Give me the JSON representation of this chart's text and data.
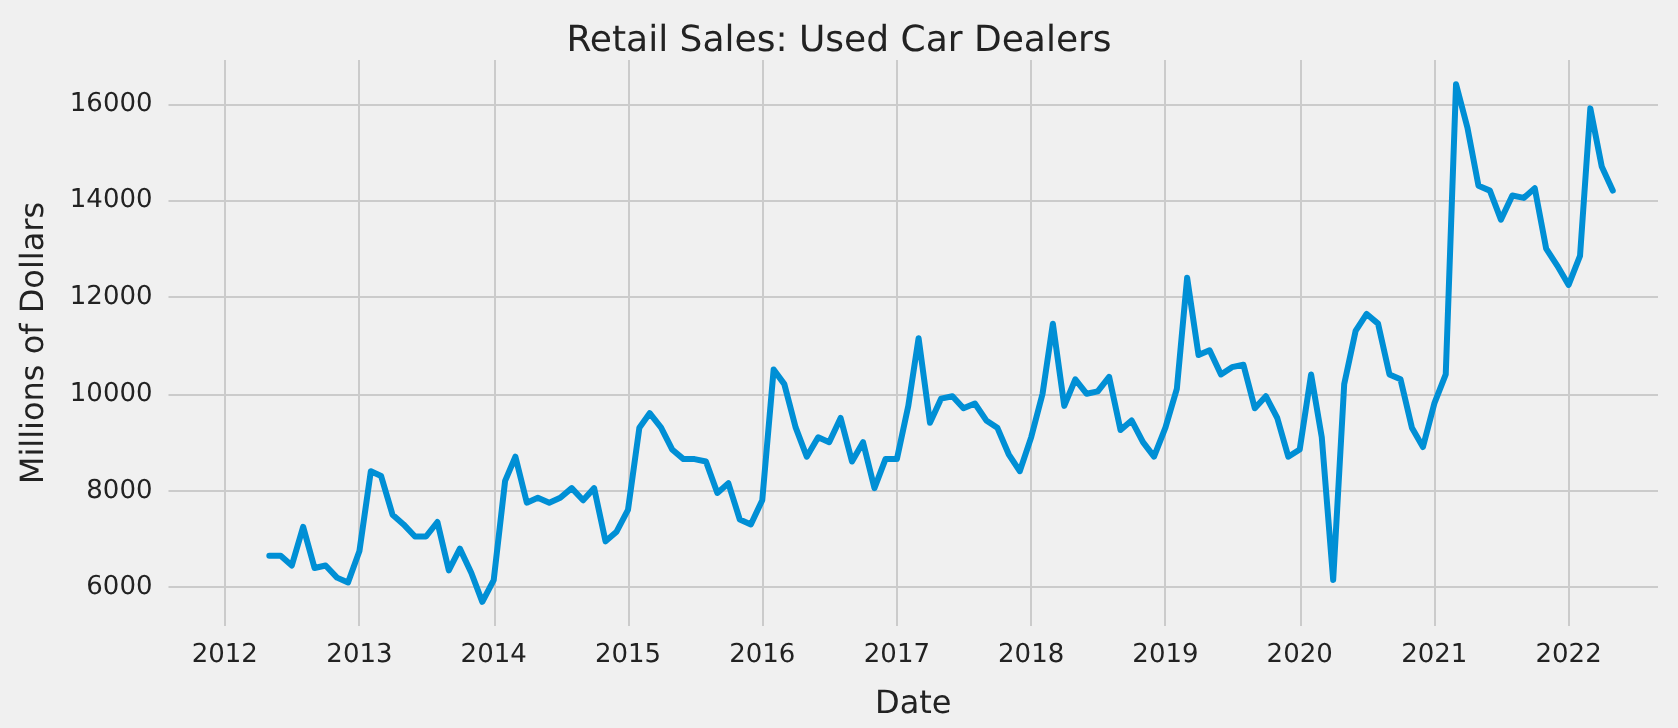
{
  "chart_data": {
    "type": "line",
    "title": "Retail Sales: Used Car Dealers",
    "xlabel": "Date",
    "ylabel": "Millions of Dollars",
    "x": [
      "2012-05",
      "2012-06",
      "2012-07",
      "2012-08",
      "2012-09",
      "2012-10",
      "2012-11",
      "2012-12",
      "2013-01",
      "2013-02",
      "2013-03",
      "2013-04",
      "2013-05",
      "2013-06",
      "2013-07",
      "2013-08",
      "2013-09",
      "2013-10",
      "2013-11",
      "2013-12",
      "2014-01",
      "2014-02",
      "2014-03",
      "2014-04",
      "2014-05",
      "2014-06",
      "2014-07",
      "2014-08",
      "2014-09",
      "2014-10",
      "2014-11",
      "2014-12",
      "2015-01",
      "2015-02",
      "2015-03",
      "2015-04",
      "2015-05",
      "2015-06",
      "2015-07",
      "2015-08",
      "2015-09",
      "2015-10",
      "2015-11",
      "2015-12",
      "2016-01",
      "2016-02",
      "2016-03",
      "2016-04",
      "2016-05",
      "2016-06",
      "2016-07",
      "2016-08",
      "2016-09",
      "2016-10",
      "2016-11",
      "2016-12",
      "2017-01",
      "2017-02",
      "2017-03",
      "2017-04",
      "2017-05",
      "2017-06",
      "2017-07",
      "2017-08",
      "2017-09",
      "2017-10",
      "2017-11",
      "2017-12",
      "2018-01",
      "2018-02",
      "2018-03",
      "2018-04",
      "2018-05",
      "2018-06",
      "2018-07",
      "2018-08",
      "2018-09",
      "2018-10",
      "2018-11",
      "2018-12",
      "2019-01",
      "2019-02",
      "2019-03",
      "2019-04",
      "2019-05",
      "2019-06",
      "2019-07",
      "2019-08",
      "2019-09",
      "2019-10",
      "2019-11",
      "2019-12",
      "2020-01",
      "2020-02",
      "2020-03",
      "2020-04",
      "2020-05",
      "2020-06",
      "2020-07",
      "2020-08",
      "2020-09",
      "2020-10",
      "2020-11",
      "2020-12",
      "2021-01",
      "2021-02",
      "2021-03",
      "2021-04",
      "2021-05",
      "2021-06",
      "2021-07",
      "2021-08",
      "2021-09",
      "2021-10",
      "2021-11",
      "2021-12",
      "2022-01",
      "2022-02",
      "2022-03",
      "2022-04",
      "2022-05"
    ],
    "series": [
      {
        "color": "#008fd5",
        "values": [
          6650,
          6650,
          6450,
          7250,
          6400,
          6450,
          6200,
          6100,
          6750,
          8400,
          8300,
          7500,
          7300,
          7050,
          7050,
          7350,
          6350,
          6800,
          6300,
          5700,
          6150,
          8200,
          8700,
          7750,
          7850,
          7750,
          7850,
          8050,
          7800,
          8050,
          6950,
          7150,
          7600,
          9300,
          9600,
          9300,
          8850,
          8650,
          8650,
          8600,
          7950,
          8150,
          7400,
          7300,
          7800,
          10500,
          10200,
          9300,
          8700,
          9100,
          9000,
          9500,
          8600,
          9000,
          8050,
          8650,
          8650,
          9750,
          11150,
          9400,
          9900,
          9950,
          9700,
          9800,
          9450,
          9300,
          8750,
          8400,
          9100,
          10000,
          11450,
          9750,
          10300,
          10000,
          10050,
          10350,
          9250,
          9450,
          9000,
          8700,
          9300,
          10100,
          12400,
          10800,
          10900,
          10400,
          10550,
          10600,
          9700,
          9950,
          9500,
          8700,
          8850,
          10400,
          9100,
          6150,
          10200,
          11300,
          11650,
          11450,
          10400,
          10300,
          9300,
          8900,
          9800,
          10400,
          16400,
          15500,
          14300,
          14200,
          13600,
          14100,
          14050,
          14250,
          13000,
          12650,
          12250,
          12850,
          15900,
          14700,
          14200
        ]
      }
    ],
    "xlim": [
      "2011-08",
      "2022-09"
    ],
    "xticks": [
      "2012",
      "2013",
      "2014",
      "2015",
      "2016",
      "2017",
      "2018",
      "2019",
      "2020",
      "2021",
      "2022"
    ],
    "ylim": [
      5200,
      16900
    ],
    "yticks": [
      6000,
      8000,
      10000,
      12000,
      14000,
      16000
    ],
    "grid": true,
    "marker": "none",
    "line_style": "solid"
  }
}
